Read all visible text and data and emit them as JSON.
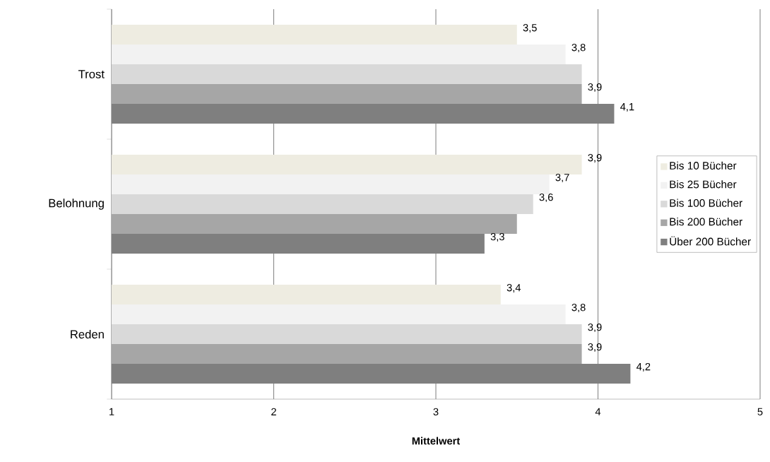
{
  "chart_data": {
    "type": "bar",
    "orientation": "horizontal",
    "xlabel": "Mittelwert",
    "categories": [
      "Trost",
      "Belohnung",
      "Reden"
    ],
    "series": [
      {
        "name": "Bis 10 Bücher",
        "color": "#eeece1",
        "values": [
          3.5,
          3.9,
          3.4
        ],
        "value_labels": [
          "3,5",
          "3,9",
          "3,4"
        ]
      },
      {
        "name": "Bis 25 Bücher",
        "color": "#f2f2f2",
        "values": [
          3.8,
          3.7,
          3.8
        ],
        "value_labels": [
          "3,8",
          "3,7",
          "3,8"
        ]
      },
      {
        "name": "Bis 100 Bücher",
        "color": "#d9d9d9",
        "values": [
          3.9,
          3.6,
          3.9
        ],
        "value_labels": [
          null,
          "3,6",
          "3,9"
        ]
      },
      {
        "name": "Bis 200 Bücher",
        "color": "#a6a6a6",
        "values": [
          3.9,
          3.5,
          3.9
        ],
        "value_labels": [
          "3,9",
          null,
          "3,9"
        ]
      },
      {
        "name": "Über 200 Bücher",
        "color": "#7f7f7f",
        "values": [
          4.1,
          3.3,
          4.2
        ],
        "value_labels": [
          "4,1",
          "3,3",
          "4,2"
        ]
      }
    ],
    "xlim": [
      1,
      5
    ],
    "xticks": [
      1,
      2,
      3,
      4,
      5
    ],
    "grid": "x",
    "legend": "right"
  }
}
